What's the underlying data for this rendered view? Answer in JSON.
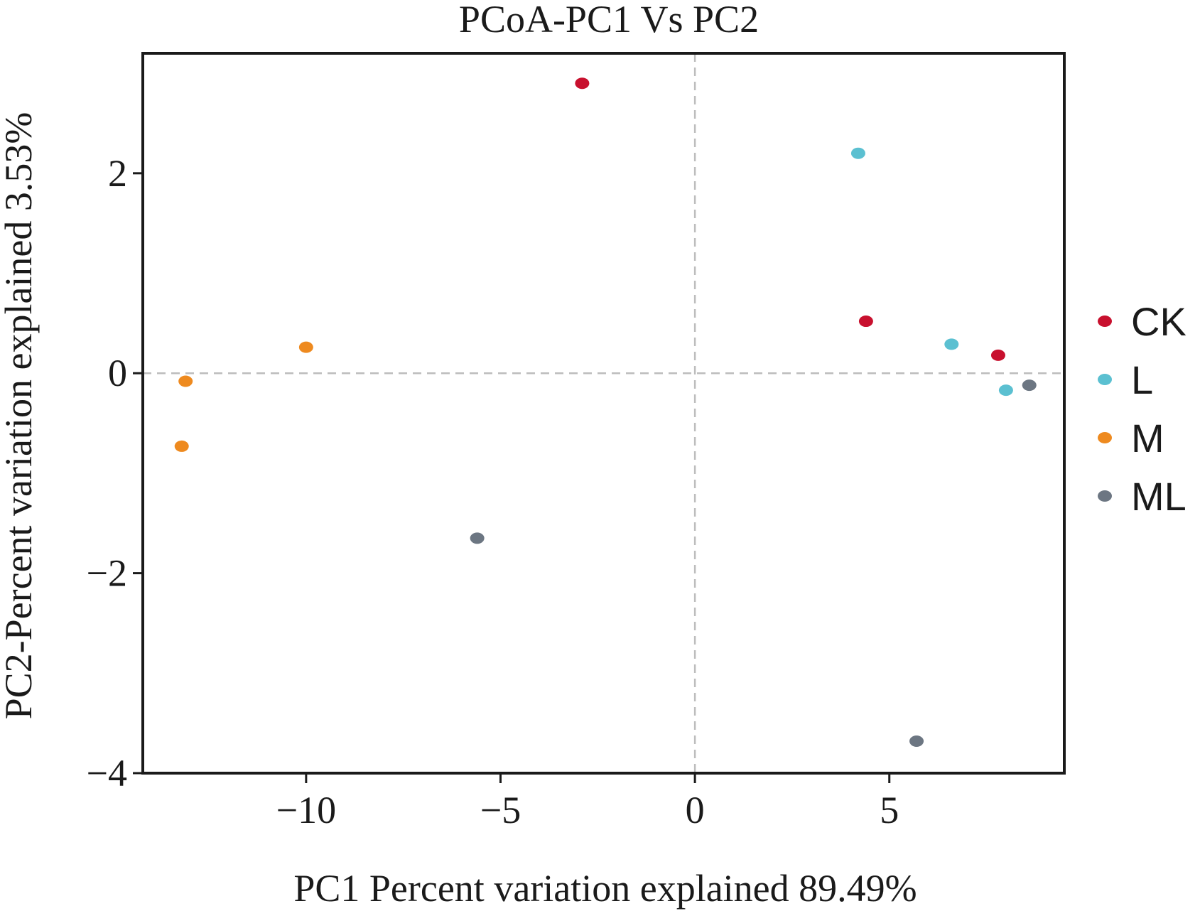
{
  "chart_data": {
    "type": "scatter",
    "title": "PCoA-PC1 Vs PC2",
    "xlabel": "PC1 Percent variation explained 89.49%",
    "ylabel": "PC2-Percent variation explained 3.53%",
    "xlim": [
      -14.2,
      9.5
    ],
    "ylim": [
      -4,
      3.2
    ],
    "xticks": [
      -10,
      -5,
      0,
      5
    ],
    "xtick_labels": [
      "−10",
      "−5",
      "0",
      "5"
    ],
    "yticks": [
      -4,
      -2,
      0,
      2
    ],
    "ytick_labels": [
      "−4",
      "−2",
      "0",
      "2"
    ],
    "reference_lines": {
      "x": 0,
      "y": 0,
      "style": "dashed"
    },
    "grid": false,
    "legend_position": "right",
    "series": [
      {
        "name": "CK",
        "color": "#c8102e",
        "points": [
          {
            "x": -2.9,
            "y": 2.9
          },
          {
            "x": 4.4,
            "y": 0.52
          },
          {
            "x": 7.8,
            "y": 0.18
          }
        ]
      },
      {
        "name": "L",
        "color": "#5bc0d1",
        "points": [
          {
            "x": 4.2,
            "y": 2.2
          },
          {
            "x": 6.6,
            "y": 0.29
          },
          {
            "x": 8.0,
            "y": -0.17
          }
        ]
      },
      {
        "name": "M",
        "color": "#ee8a1f",
        "points": [
          {
            "x": -10.0,
            "y": 0.26
          },
          {
            "x": -13.1,
            "y": -0.08
          },
          {
            "x": -13.2,
            "y": -0.73
          }
        ]
      },
      {
        "name": "ML",
        "color": "#6c7682",
        "points": [
          {
            "x": -5.6,
            "y": -1.65
          },
          {
            "x": 8.6,
            "y": -0.12
          },
          {
            "x": 5.7,
            "y": -3.68
          }
        ]
      }
    ]
  }
}
